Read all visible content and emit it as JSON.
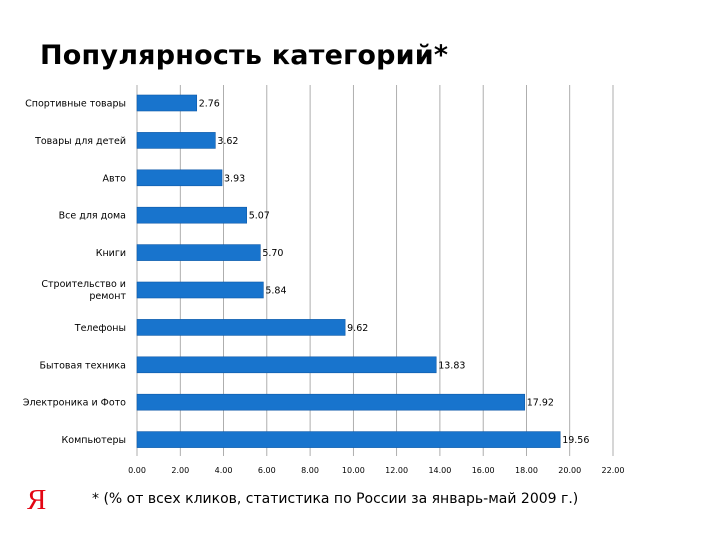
{
  "title": "Популярность категорий*",
  "footnote": "* (% от всех кликов, статистика по России за январь-май 2009 г.)",
  "logo_text": "Я",
  "colors": {
    "bar": "#1874cd",
    "bar_edge": "#0f5aa8",
    "grid": "#9a9a9a",
    "logo": "#e30613"
  },
  "chart_data": {
    "type": "bar",
    "orientation": "horizontal",
    "categories": [
      "Спортивные товары",
      "Товары для детей",
      "Авто",
      "Все для дома",
      "Книги",
      "Строительство и ремонт",
      "Телефоны",
      "Бытовая техника",
      "Электроника и Фото",
      "Компьютеры"
    ],
    "values": [
      2.76,
      3.62,
      3.93,
      5.07,
      5.7,
      5.84,
      9.62,
      13.83,
      17.92,
      19.56
    ],
    "value_labels": [
      "2.76",
      "3.62",
      "3.93",
      "5.07",
      "5.70",
      "5.84",
      "9.62",
      "13.83",
      "17.92",
      "19.56"
    ],
    "x_ticks": [
      0,
      2,
      4,
      6,
      8,
      10,
      12,
      14,
      16,
      18,
      20,
      22
    ],
    "x_tick_labels": [
      "0.00",
      "2.00",
      "4.00",
      "6.00",
      "8.00",
      "10.00",
      "12.00",
      "14.00",
      "16.00",
      "18.00",
      "20.00",
      "22.00"
    ],
    "xlim": [
      0,
      22
    ],
    "grid": "vertical",
    "legend": "none"
  }
}
